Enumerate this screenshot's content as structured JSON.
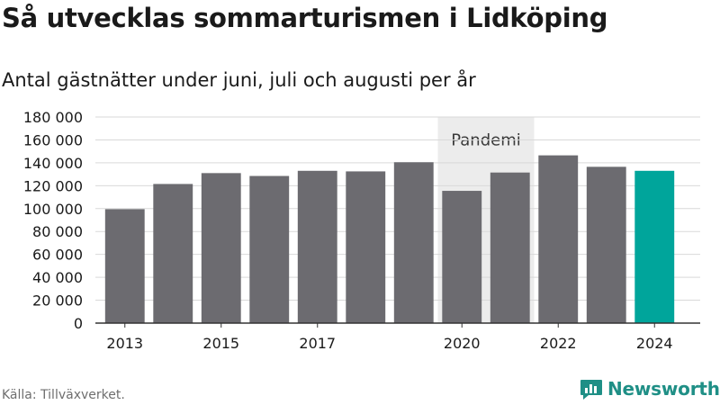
{
  "header": {
    "title": "Så utvecklas sommarturismen i Lidköping",
    "subtitle": "Antal gästnätter under juni, juli och augusti per år"
  },
  "footer": {
    "source": "Källa: Tillväxverket.",
    "brand": "Newsworthy"
  },
  "colors": {
    "bar": "#6c6b70",
    "highlight": "#00a59b",
    "pandemic_shade": "#ececec",
    "grid": "#d9d9d9",
    "brand": "#1f8f86"
  },
  "icons": {
    "brand_logo": "newsworthy-logo-icon"
  },
  "chart_data": {
    "type": "bar",
    "categories": [
      "2013",
      "2014",
      "2015",
      "2016",
      "2017",
      "2018",
      "2019",
      "2020",
      "2021",
      "2022",
      "2023",
      "2024"
    ],
    "x_tick_labels": [
      "2013",
      "",
      "2015",
      "",
      "2017",
      "",
      "",
      "2020",
      "",
      "2022",
      "",
      "2024"
    ],
    "values": [
      99500,
      121500,
      131000,
      128500,
      133000,
      132500,
      140500,
      115500,
      131500,
      146500,
      136500,
      133000
    ],
    "highlight_category": "2024",
    "ylim": [
      0,
      180000
    ],
    "yticks": [
      0,
      20000,
      40000,
      60000,
      80000,
      100000,
      120000,
      140000,
      160000,
      180000
    ],
    "ytick_labels": [
      "0",
      "20 000",
      "40 000",
      "60 000",
      "80 000",
      "100 000",
      "120 000",
      "140 000",
      "160 000",
      "180 000"
    ],
    "annotation": {
      "label": "Pandemi",
      "from": "2020",
      "to": "2021"
    },
    "grid": true,
    "xlabel": "",
    "ylabel": ""
  }
}
